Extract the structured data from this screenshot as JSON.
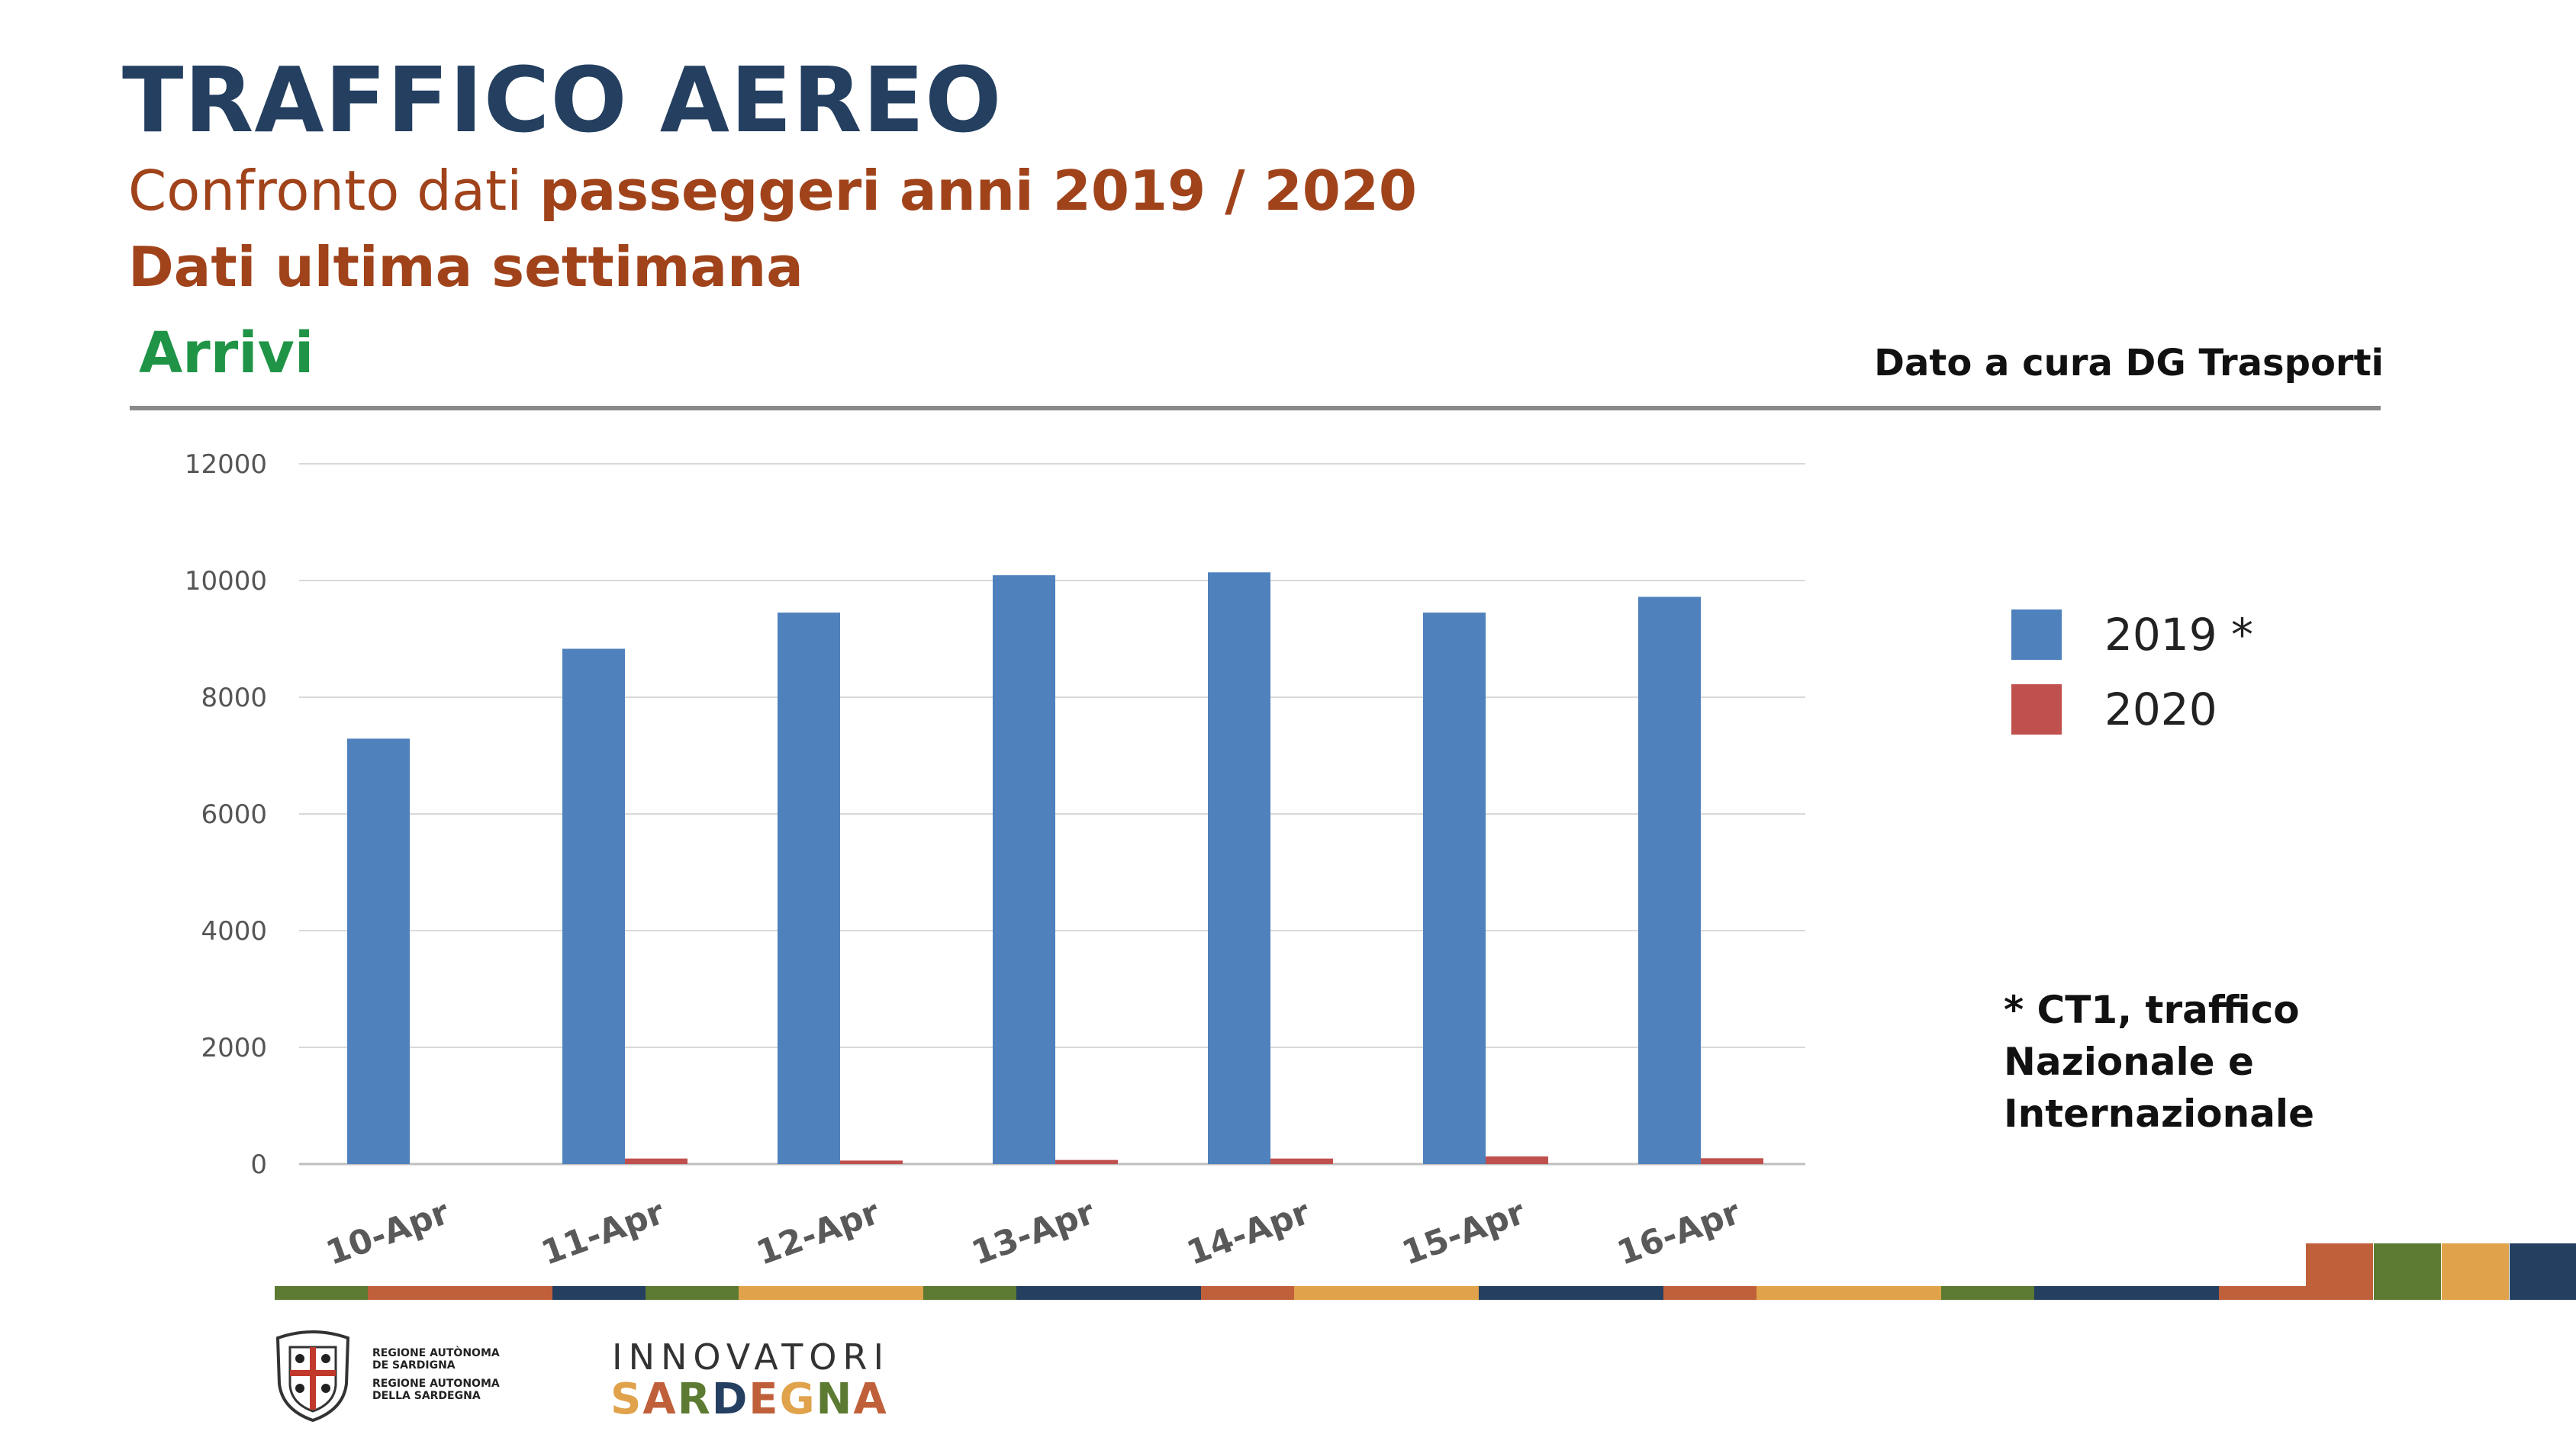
{
  "header": {
    "title": "TRAFFICO AEREO",
    "subtitle_plain": "Confronto dati ",
    "subtitle_bold": "passeggeri anni 2019 / 2020",
    "subtitle2": "Dati ultima settimana",
    "section": "Arrivi",
    "source": "Dato a cura DG Trasporti"
  },
  "note": {
    "line1": "* CT1, traffico",
    "line2": "Nazionale e",
    "line3": "Internazionale"
  },
  "chart_data": {
    "type": "bar",
    "title": "",
    "xlabel": "",
    "ylabel": "",
    "categories": [
      "10-Apr",
      "11-Apr",
      "12-Apr",
      "13-Apr",
      "14-Apr",
      "15-Apr",
      "16-Apr"
    ],
    "series": [
      {
        "name": "2019 *",
        "color": "#4f81bd",
        "values": [
          7290,
          8830,
          9450,
          10090,
          10140,
          9450,
          9720
        ]
      },
      {
        "name": "2020",
        "color": "#c0504d",
        "values": [
          0,
          95,
          60,
          70,
          95,
          130,
          100
        ]
      }
    ],
    "ylim": [
      0,
      12000
    ],
    "yticks": [
      "0",
      "2000",
      "4000",
      "6000",
      "8000",
      "10000",
      "12000"
    ],
    "grid": true,
    "legend": "right"
  },
  "colors": {
    "title": "#243f60",
    "accent": "#a0431b",
    "green": "#1f9447",
    "stripe_orange": "#c0603a",
    "stripe_green": "#5c7a32",
    "stripe_yellow": "#e0a24a",
    "stripe_navy": "#243f60"
  },
  "footer": {
    "logo_line1": "REGIONE AUTÒNOMA",
    "logo_line2": "DE SARDIGNA",
    "logo_line3": "REGIONE AUTONOMA",
    "logo_line4": "DELLA SARDEGNA",
    "innovatori": "INNOVATORI",
    "sardegna": "SARDEGNA",
    "logo_icon": "regional-coat-of-arms"
  }
}
